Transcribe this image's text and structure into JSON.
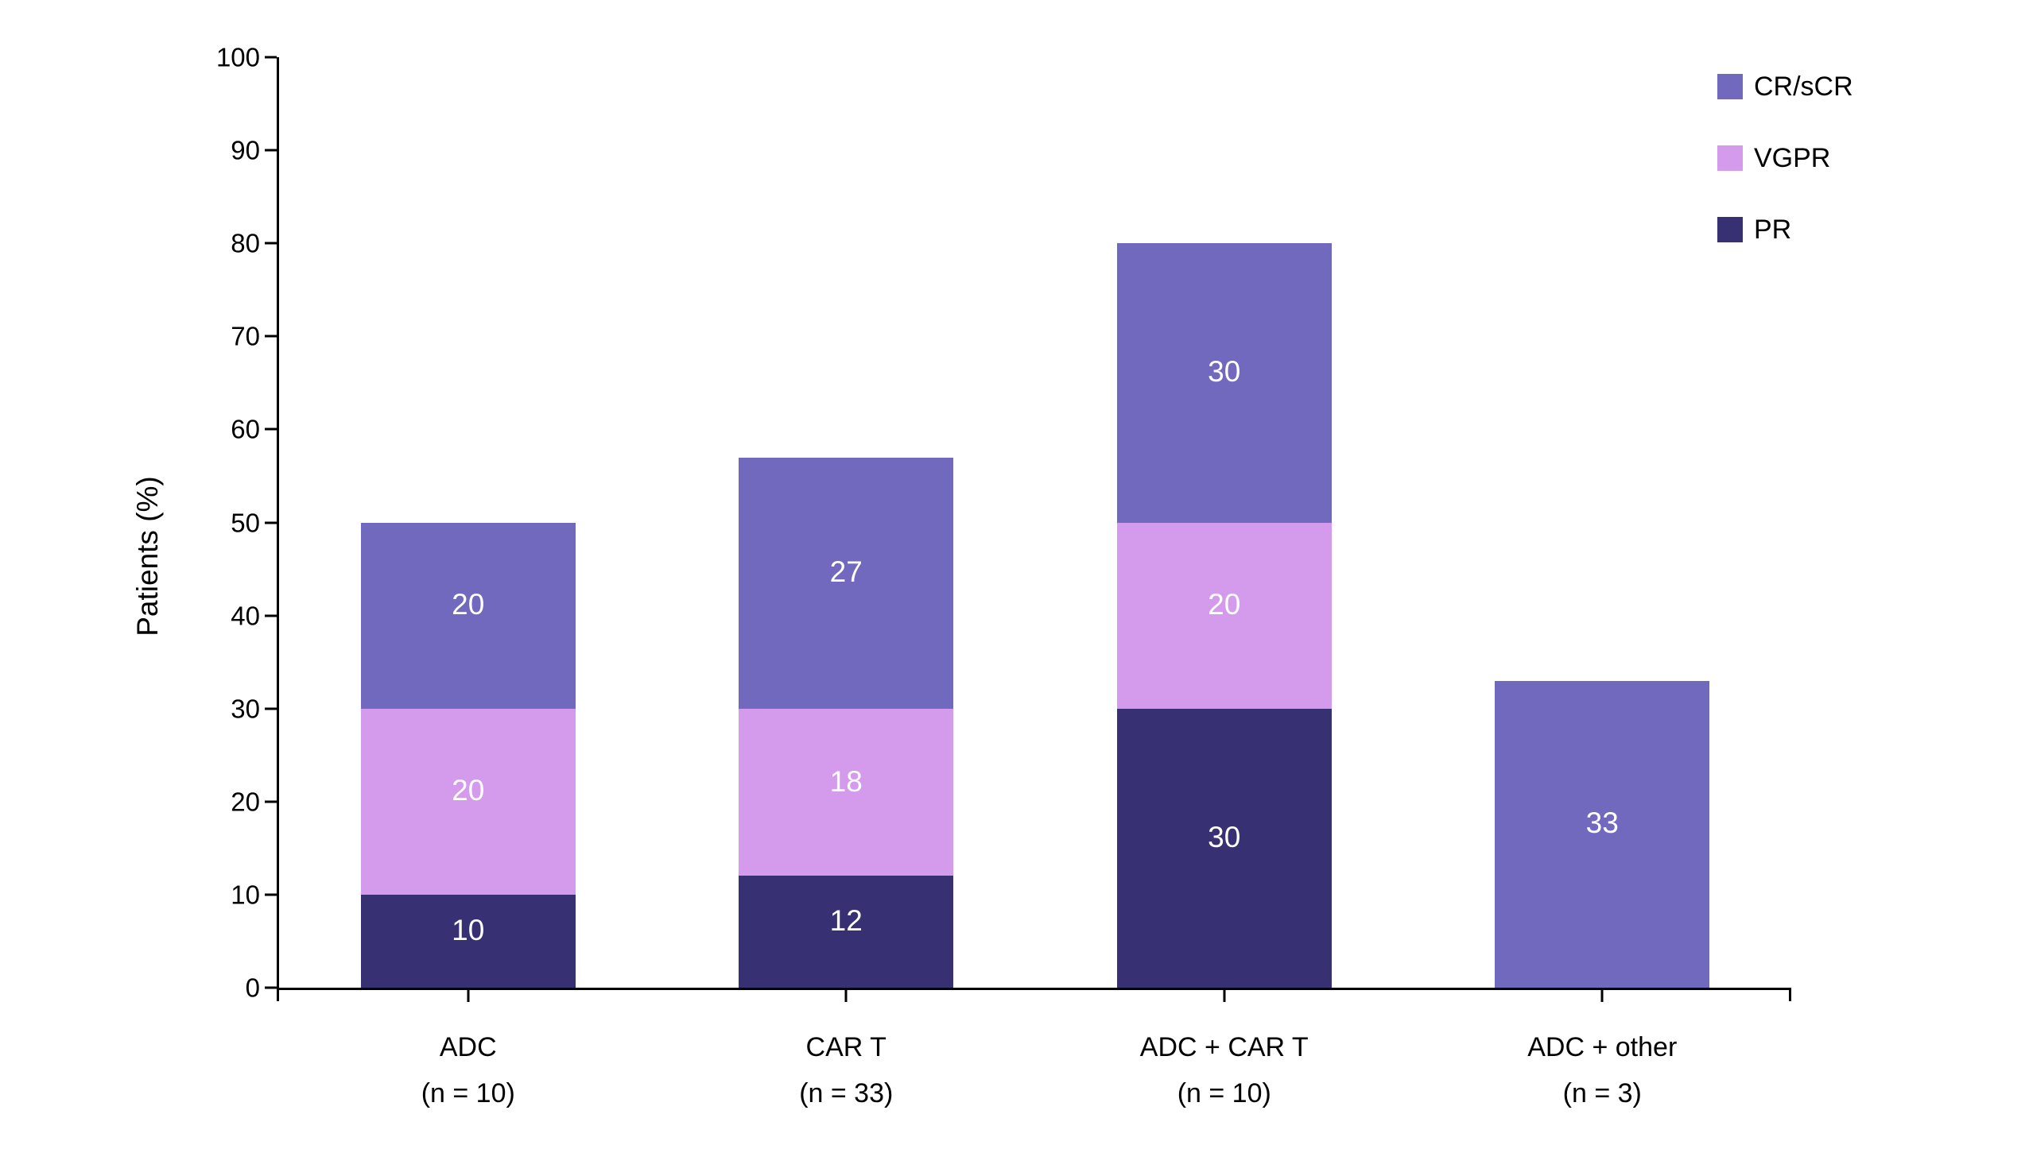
{
  "chart_data": {
    "type": "bar",
    "stacked": true,
    "title": "",
    "xlabel": "",
    "ylabel": "Patients (%)",
    "ylim": [
      0,
      100
    ],
    "yticks": [
      0,
      10,
      20,
      30,
      40,
      50,
      60,
      70,
      80,
      90,
      100
    ],
    "grid": false,
    "legend_position": "top-right",
    "axis_color": "#000000",
    "bar_label_color": "#FFFFFF",
    "stack_order": "bottom-to-top",
    "categories": [
      {
        "label": "ADC",
        "n_label": "(n = 10)"
      },
      {
        "label": "CAR T",
        "n_label": "(n = 33)"
      },
      {
        "label": "ADC + CAR T",
        "n_label": "(n = 10)"
      },
      {
        "label": "ADC + other",
        "n_label": "(n = 3)"
      }
    ],
    "series": [
      {
        "name": "PR",
        "color": "#373173",
        "values": [
          10,
          12,
          30,
          0
        ]
      },
      {
        "name": "VGPR",
        "color": "#D49AEB",
        "values": [
          20,
          18,
          20,
          0
        ]
      },
      {
        "name": "CR/sCR",
        "color": "#7169BE",
        "values": [
          20,
          27,
          30,
          33
        ]
      }
    ],
    "totals": [
      50,
      57,
      80,
      33
    ],
    "legend": [
      {
        "label": "CR/sCR",
        "color": "#7169BE"
      },
      {
        "label": "VGPR",
        "color": "#D49AEB"
      },
      {
        "label": "PR",
        "color": "#373173"
      }
    ]
  }
}
